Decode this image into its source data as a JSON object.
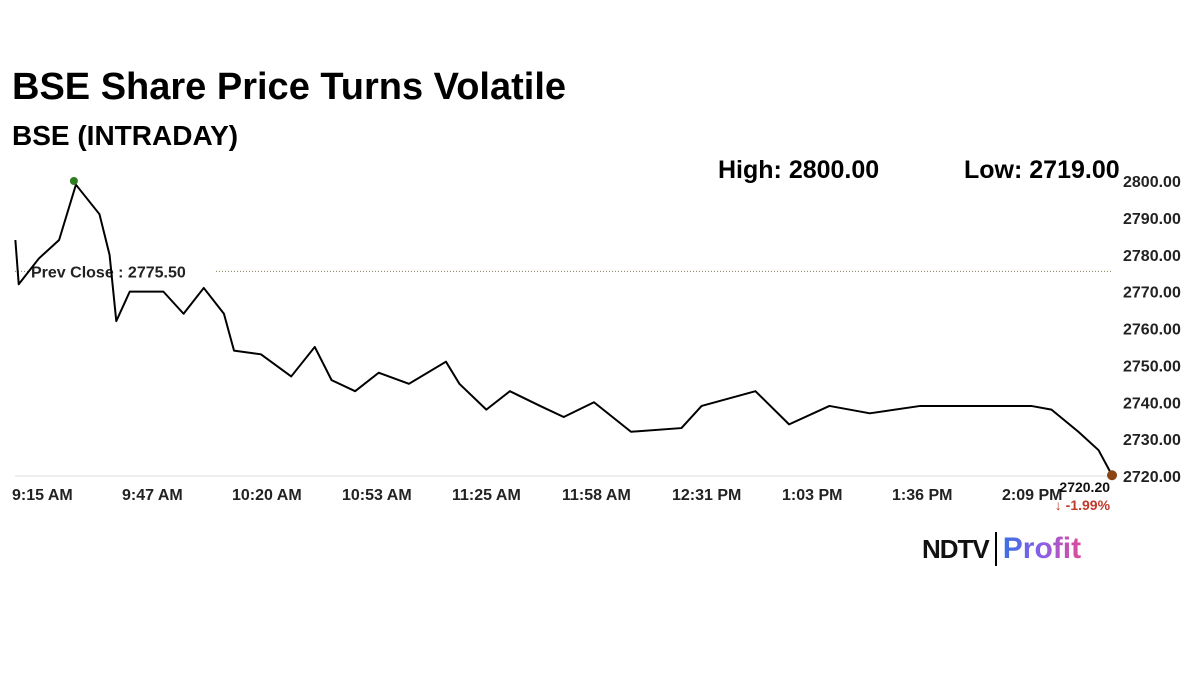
{
  "title": "BSE Share Price Turns Volatile",
  "subtitle": "BSE (INTRADAY)",
  "high_label": "High: 2800.00",
  "low_label": "Low: 2719.00",
  "logo": {
    "left": "NDTV",
    "right": "Profit"
  },
  "chart_data": {
    "type": "line",
    "ylim": [
      2720,
      2800
    ],
    "yticks": [
      "2720.00",
      "2730.00",
      "2740.00",
      "2750.00",
      "2760.00",
      "2770.00",
      "2780.00",
      "2790.00",
      "2800.00"
    ],
    "xticks": [
      "9:15 AM",
      "9:47 AM",
      "10:20 AM",
      "10:53 AM",
      "11:25 AM",
      "11:58 AM",
      "12:31 PM",
      "1:03 PM",
      "1:36 PM",
      "2:09 PM"
    ],
    "prev_close_label": "Prev Close : 2775.50",
    "prev_close": 2775.5,
    "last_value_label": "2720.20",
    "change_label": "↓ -1.99%",
    "line_color": "#000000",
    "high_marker_color": "#2e7d1e",
    "last_marker_color": "#8b4513",
    "change_color": "#c0392b",
    "series": [
      [
        "9:16",
        2784
      ],
      [
        "9:17",
        2772
      ],
      [
        "9:23",
        2779
      ],
      [
        "9:29",
        2784
      ],
      [
        "9:34",
        2799
      ],
      [
        "9:41",
        2791
      ],
      [
        "9:44",
        2780
      ],
      [
        "9:46",
        2762
      ],
      [
        "9:50",
        2770
      ],
      [
        "10:00",
        2770
      ],
      [
        "10:06",
        2764
      ],
      [
        "10:12",
        2771
      ],
      [
        "10:18",
        2764
      ],
      [
        "10:21",
        2754
      ],
      [
        "10:29",
        2753
      ],
      [
        "10:38",
        2747
      ],
      [
        "10:45",
        2755
      ],
      [
        "10:50",
        2746
      ],
      [
        "10:57",
        2743
      ],
      [
        "11:04",
        2748
      ],
      [
        "11:13",
        2745
      ],
      [
        "11:24",
        2751
      ],
      [
        "11:28",
        2745
      ],
      [
        "11:36",
        2738
      ],
      [
        "11:43",
        2743
      ],
      [
        "11:52",
        2739
      ],
      [
        "11:59",
        2736
      ],
      [
        "12:08",
        2740
      ],
      [
        "12:19",
        2732
      ],
      [
        "12:34",
        2733
      ],
      [
        "12:40",
        2739
      ],
      [
        "12:56",
        2743
      ],
      [
        "13:06",
        2734
      ],
      [
        "13:18",
        2739
      ],
      [
        "13:30",
        2737
      ],
      [
        "13:45",
        2739
      ],
      [
        "14:01",
        2739
      ],
      [
        "14:18",
        2739
      ],
      [
        "14:24",
        2738
      ],
      [
        "14:32",
        2732
      ],
      [
        "14:38",
        2727
      ],
      [
        "14:42",
        2720.2
      ]
    ]
  }
}
